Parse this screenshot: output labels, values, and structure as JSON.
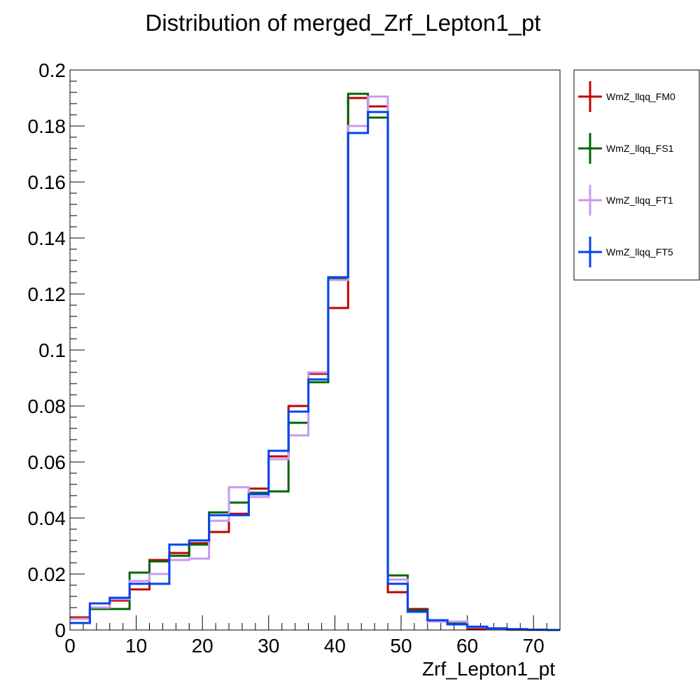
{
  "chart_data": {
    "type": "histogram",
    "title": "Distribution of merged_Zrf_Lepton1_pt",
    "xlabel": "Zrf_Lepton1_pt",
    "ylabel": "",
    "xlim": [
      0,
      74
    ],
    "ylim": [
      0,
      0.2
    ],
    "bin_edges": [
      0,
      3,
      6,
      9,
      12,
      15,
      18,
      21,
      24,
      27,
      30,
      33,
      36,
      39,
      42,
      45,
      48,
      51,
      54,
      57,
      60,
      63,
      66,
      69,
      72,
      74
    ],
    "x_ticks": [
      "0",
      "10",
      "20",
      "30",
      "40",
      "50",
      "60",
      "70"
    ],
    "y_ticks": [
      "0",
      "0.02",
      "0.04",
      "0.06",
      "0.08",
      "0.1",
      "0.12",
      "0.14",
      "0.16",
      "0.18",
      "0.2"
    ],
    "legend_position": "right",
    "series": [
      {
        "name": "WmZ_llqq_FM0",
        "color": "#c00000",
        "values": [
          0.0045,
          0.008,
          0.0105,
          0.0145,
          0.025,
          0.0275,
          0.031,
          0.035,
          0.0415,
          0.0505,
          0.062,
          0.08,
          0.0915,
          0.115,
          0.19,
          0.187,
          0.0135,
          0.0075,
          0.003,
          0.002,
          0.0005,
          0.0003,
          0.0001,
          0.0001,
          0.0
        ]
      },
      {
        "name": "WmZ_llqq_FS1",
        "color": "#006400",
        "values": [
          0.0025,
          0.0075,
          0.0075,
          0.0205,
          0.0245,
          0.0265,
          0.0305,
          0.042,
          0.0455,
          0.049,
          0.0495,
          0.074,
          0.0885,
          0.1255,
          0.1915,
          0.183,
          0.0195,
          0.007,
          0.0035,
          0.0025,
          0.001,
          0.0004,
          0.0002,
          0.0001,
          0.0
        ]
      },
      {
        "name": "WmZ_llqq_FT1",
        "color": "#c89af0",
        "values": [
          0.004,
          0.008,
          0.011,
          0.0175,
          0.02,
          0.025,
          0.0255,
          0.039,
          0.051,
          0.0475,
          0.061,
          0.0695,
          0.092,
          0.125,
          0.18,
          0.1905,
          0.018,
          0.0065,
          0.003,
          0.003,
          0.001,
          0.0005,
          0.0002,
          0.0001,
          0.0
        ]
      },
      {
        "name": "WmZ_llqq_FT5",
        "color": "#0044ee",
        "values": [
          0.0025,
          0.0095,
          0.0115,
          0.0165,
          0.0165,
          0.0305,
          0.032,
          0.041,
          0.041,
          0.0485,
          0.064,
          0.078,
          0.0895,
          0.126,
          0.1775,
          0.185,
          0.0165,
          0.0065,
          0.0035,
          0.002,
          0.0012,
          0.0006,
          0.0003,
          0.0001,
          0.0
        ]
      }
    ]
  }
}
